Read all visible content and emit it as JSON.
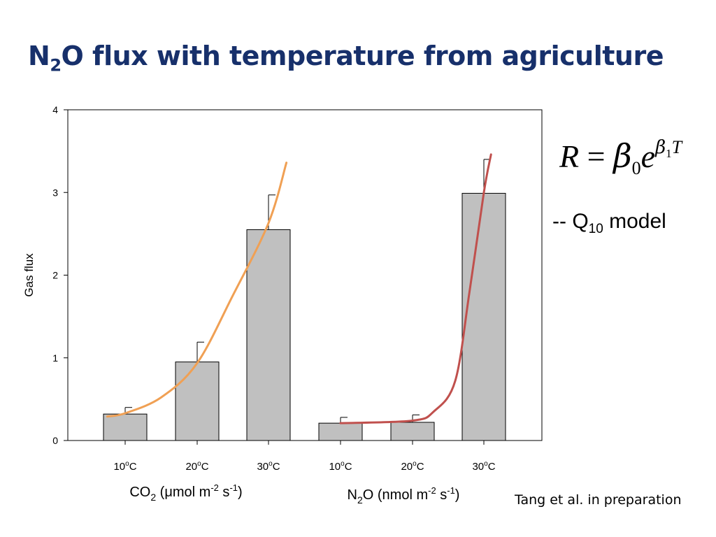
{
  "slide": {
    "title_part1": "N",
    "title_sub": "2",
    "title_part2": "O flux with temperature from agriculture",
    "model": {
      "prefix": "-- Q",
      "sub": "10",
      "suffix": " model"
    },
    "equation": {
      "lhs": "R",
      "equals": " = ",
      "beta": "β",
      "beta_sub": "0",
      "e": "e",
      "exp_beta": "β",
      "exp_sub": "1",
      "exp_T": "T"
    },
    "citation": "Tang et al. in preparation"
  },
  "chart_data": {
    "type": "bar",
    "ylabel": "Gas flux",
    "ylim": [
      0,
      4
    ],
    "yticks": [
      "0",
      "1",
      "2",
      "3",
      "4"
    ],
    "categories": [
      "10oC",
      "20oC",
      "30oC",
      "10oC",
      "20oC",
      "30oC"
    ],
    "values": [
      0.32,
      0.95,
      2.55,
      0.21,
      0.22,
      2.99
    ],
    "error_upper": [
      0.4,
      1.19,
      2.97,
      0.28,
      0.31,
      3.4
    ],
    "group_labels": [
      {
        "main": "CO",
        "sub": "2",
        "rest": " (μmol m",
        "sup1": "-2",
        "mid": " s",
        "sup2": "-1",
        "end": ")"
      },
      {
        "main": "N",
        "sub": "2",
        "rest": "O (nmol m",
        "sup1": "-2",
        "mid": " s",
        "sup2": "-1",
        "end": ")"
      }
    ],
    "fit_curves": [
      {
        "series": "CO2",
        "color": "#f0a054",
        "points": [
          [
            7.5,
            0.29
          ],
          [
            10,
            0.33
          ],
          [
            15,
            0.52
          ],
          [
            20,
            0.93
          ],
          [
            25,
            1.75
          ],
          [
            30,
            2.63
          ],
          [
            32.5,
            3.36
          ]
        ]
      },
      {
        "series": "N2O",
        "color": "#c0504d",
        "points": [
          [
            10,
            0.21
          ],
          [
            20,
            0.24
          ],
          [
            23,
            0.35
          ],
          [
            26,
            0.72
          ],
          [
            28,
            1.8
          ],
          [
            30,
            3.0
          ],
          [
            31,
            3.46
          ]
        ]
      }
    ],
    "colors": {
      "bar_fill": "#c0c0c0",
      "bar_stroke": "#000000",
      "title": "#17306b"
    }
  }
}
